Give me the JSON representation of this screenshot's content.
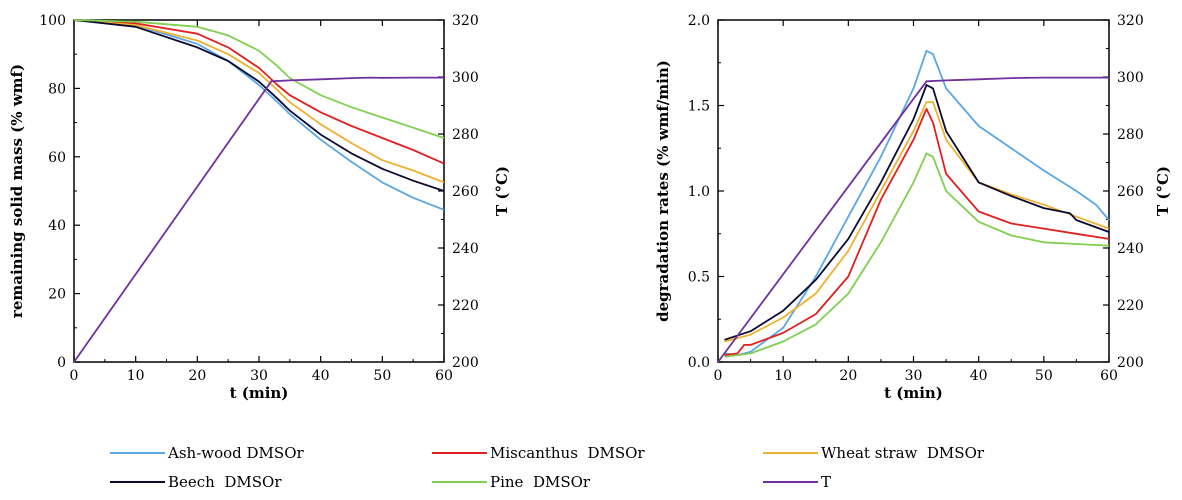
{
  "chart_data": [
    {
      "type": "line",
      "xlabel": "t (min)",
      "ylabel": "remaining solid mass (% wmf)",
      "y2label": "T (°C)",
      "xlim": [
        0,
        60
      ],
      "ylim": [
        0,
        100
      ],
      "y2lim": [
        200,
        320
      ],
      "xticks": [
        "0",
        "10",
        "20",
        "30",
        "40",
        "50",
        "60"
      ],
      "yticks": [
        "0",
        "20",
        "40",
        "60",
        "80",
        "100"
      ],
      "y2ticks": [
        "200",
        "220",
        "240",
        "260",
        "280",
        "300",
        "320"
      ],
      "series": [
        {
          "name": "Ash-wood DMSOr",
          "color": "#5aa6e6",
          "axis": "left",
          "x": [
            0,
            10,
            20,
            25,
            30,
            33,
            35,
            40,
            45,
            50,
            55,
            60
          ],
          "y": [
            100,
            98.5,
            93,
            88,
            81,
            76,
            72.5,
            65,
            58.5,
            52.5,
            48,
            44.5
          ]
        },
        {
          "name": "Miscanthus DMSOr",
          "color": "#e02020",
          "axis": "left",
          "x": [
            0,
            10,
            20,
            25,
            30,
            33,
            35,
            40,
            45,
            50,
            55,
            60
          ],
          "y": [
            100,
            99,
            96,
            92,
            86,
            81,
            78,
            73,
            69,
            65.5,
            62,
            58
          ]
        },
        {
          "name": "Wheat straw DMSOr",
          "color": "#f0b030",
          "axis": "left",
          "x": [
            0,
            10,
            20,
            25,
            30,
            33,
            35,
            40,
            45,
            50,
            55,
            60
          ],
          "y": [
            100,
            98.5,
            94,
            90,
            84.5,
            79.5,
            76,
            69.5,
            64,
            59,
            56,
            52.5
          ]
        },
        {
          "name": "Beech DMSOr",
          "color": "#0a0a30",
          "axis": "left",
          "x": [
            0,
            10,
            20,
            25,
            30,
            33,
            35,
            40,
            45,
            50,
            55,
            60
          ],
          "y": [
            100,
            98,
            92,
            88,
            82,
            77,
            73.5,
            66.5,
            61,
            56.5,
            53,
            50
          ]
        },
        {
          "name": "Pine DMSOr",
          "color": "#80d050",
          "axis": "left",
          "x": [
            0,
            10,
            20,
            25,
            30,
            33,
            35,
            40,
            45,
            50,
            55,
            60
          ],
          "y": [
            100,
            99.5,
            98,
            95.5,
            91,
            86.5,
            83,
            78,
            74.5,
            71.5,
            68.5,
            65.5
          ]
        },
        {
          "name": "T",
          "color": "#7030a0",
          "axis": "right",
          "x": [
            0,
            32,
            35,
            40,
            45,
            48,
            50,
            55,
            60
          ],
          "y": [
            200,
            298.5,
            298.8,
            299.2,
            299.6,
            299.8,
            299.7,
            299.8,
            299.8
          ]
        }
      ]
    },
    {
      "type": "line",
      "xlabel": "t (min)",
      "ylabel": "degradation rates (% wmf/min)",
      "y2label": "T (°C)",
      "xlim": [
        0,
        60
      ],
      "ylim": [
        0,
        2.0
      ],
      "y2lim": [
        200,
        320
      ],
      "xticks": [
        "0",
        "10",
        "20",
        "30",
        "40",
        "50",
        "60"
      ],
      "yticks": [
        "0.0",
        "0.5",
        "1.0",
        "1.5",
        "2.0"
      ],
      "y2ticks": [
        "200",
        "220",
        "240",
        "260",
        "280",
        "300",
        "320"
      ],
      "series": [
        {
          "name": "Ash-wood DMSOr",
          "color": "#5aa6e6",
          "axis": "left",
          "x": [
            1,
            3,
            5,
            10,
            15,
            20,
            25,
            30,
            32,
            33,
            35,
            40,
            45,
            50,
            55,
            58,
            60
          ],
          "y": [
            0.05,
            0.04,
            0.06,
            0.2,
            0.5,
            0.85,
            1.2,
            1.6,
            1.82,
            1.8,
            1.6,
            1.38,
            1.25,
            1.12,
            1.0,
            0.92,
            0.83
          ]
        },
        {
          "name": "Miscanthus DMSOr",
          "color": "#e02020",
          "axis": "left",
          "x": [
            1,
            3,
            4,
            5,
            10,
            15,
            20,
            25,
            30,
            32,
            33,
            35,
            40,
            45,
            50,
            55,
            60
          ],
          "y": [
            0.04,
            0.05,
            0.1,
            0.1,
            0.17,
            0.28,
            0.5,
            0.95,
            1.3,
            1.48,
            1.4,
            1.1,
            0.88,
            0.81,
            0.78,
            0.75,
            0.72
          ]
        },
        {
          "name": "Wheat straw DMSOr",
          "color": "#f0b030",
          "axis": "left",
          "x": [
            1,
            5,
            10,
            15,
            20,
            25,
            30,
            32,
            33,
            35,
            40,
            45,
            50,
            55,
            60
          ],
          "y": [
            0.12,
            0.16,
            0.26,
            0.4,
            0.65,
            1.0,
            1.35,
            1.52,
            1.52,
            1.3,
            1.05,
            0.98,
            0.92,
            0.85,
            0.78
          ]
        },
        {
          "name": "Beech DMSOr",
          "color": "#0a0a30",
          "axis": "left",
          "x": [
            1,
            5,
            10,
            15,
            20,
            25,
            30,
            32,
            33,
            35,
            40,
            45,
            50,
            54,
            55,
            60
          ],
          "y": [
            0.13,
            0.18,
            0.3,
            0.48,
            0.72,
            1.05,
            1.42,
            1.62,
            1.6,
            1.35,
            1.05,
            0.97,
            0.9,
            0.87,
            0.83,
            0.76
          ]
        },
        {
          "name": "Pine DMSOr",
          "color": "#80d050",
          "axis": "left",
          "x": [
            1,
            5,
            10,
            15,
            20,
            25,
            30,
            32,
            33,
            35,
            40,
            45,
            50,
            55,
            60
          ],
          "y": [
            0.03,
            0.05,
            0.12,
            0.22,
            0.4,
            0.7,
            1.05,
            1.22,
            1.2,
            1.0,
            0.82,
            0.74,
            0.7,
            0.69,
            0.68
          ]
        },
        {
          "name": "T",
          "color": "#7030a0",
          "axis": "right",
          "x": [
            0,
            32,
            35,
            40,
            45,
            50,
            55,
            60
          ],
          "y": [
            200,
            298.5,
            298.8,
            299.2,
            299.6,
            299.8,
            299.8,
            299.8
          ]
        }
      ]
    }
  ],
  "legend": {
    "items": [
      {
        "label": "Ash-wood DMSOr",
        "color": "#5aa6e6"
      },
      {
        "label": "Miscanthus  DMSOr",
        "color": "#e02020"
      },
      {
        "label": "Wheat straw  DMSOr",
        "color": "#f0b030"
      },
      {
        "label": "Beech  DMSOr",
        "color": "#0a0a30"
      },
      {
        "label": "Pine  DMSOr",
        "color": "#80d050"
      },
      {
        "label": "T",
        "color": "#7030a0"
      }
    ]
  }
}
